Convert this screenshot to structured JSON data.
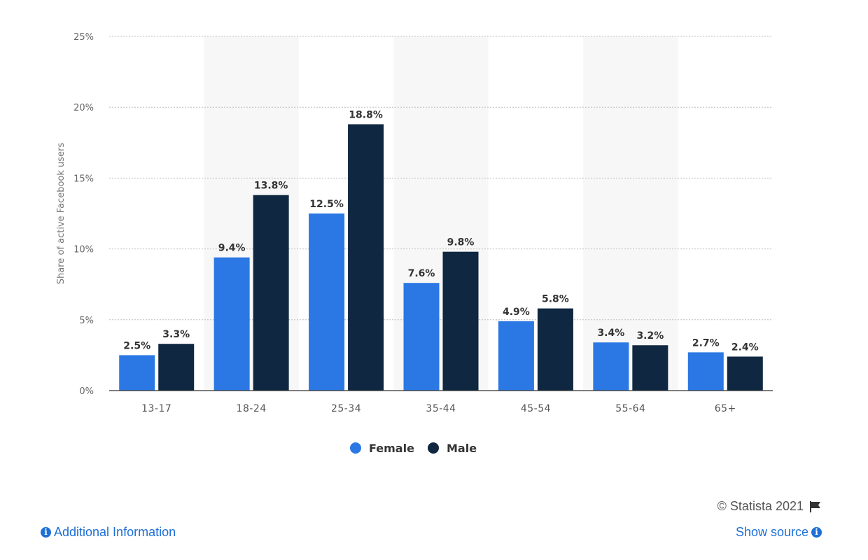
{
  "chart_data": {
    "type": "bar",
    "categories": [
      "13-17",
      "18-24",
      "25-34",
      "35-44",
      "45-54",
      "55-64",
      "65+"
    ],
    "series": [
      {
        "name": "Female",
        "color": "#2b78e4",
        "values": [
          2.5,
          9.4,
          12.5,
          7.6,
          4.9,
          3.4,
          2.7
        ]
      },
      {
        "name": "Male",
        "color": "#0f2740",
        "values": [
          3.3,
          13.8,
          18.8,
          9.8,
          5.8,
          3.2,
          2.4
        ]
      }
    ],
    "ylabel": "Share of active Facebook users",
    "xlabel": "",
    "ylim": [
      0,
      25
    ],
    "yticks": [
      0,
      5,
      10,
      15,
      20,
      25
    ],
    "ytick_suffix": "%",
    "value_suffix": "%",
    "grid": true,
    "legend_position": "bottom"
  },
  "footer": {
    "additional_info": "Additional Information",
    "copyright": "© Statista 2021",
    "show_source": "Show source"
  },
  "icons": {
    "info": "info-icon",
    "flag": "flag-icon"
  }
}
